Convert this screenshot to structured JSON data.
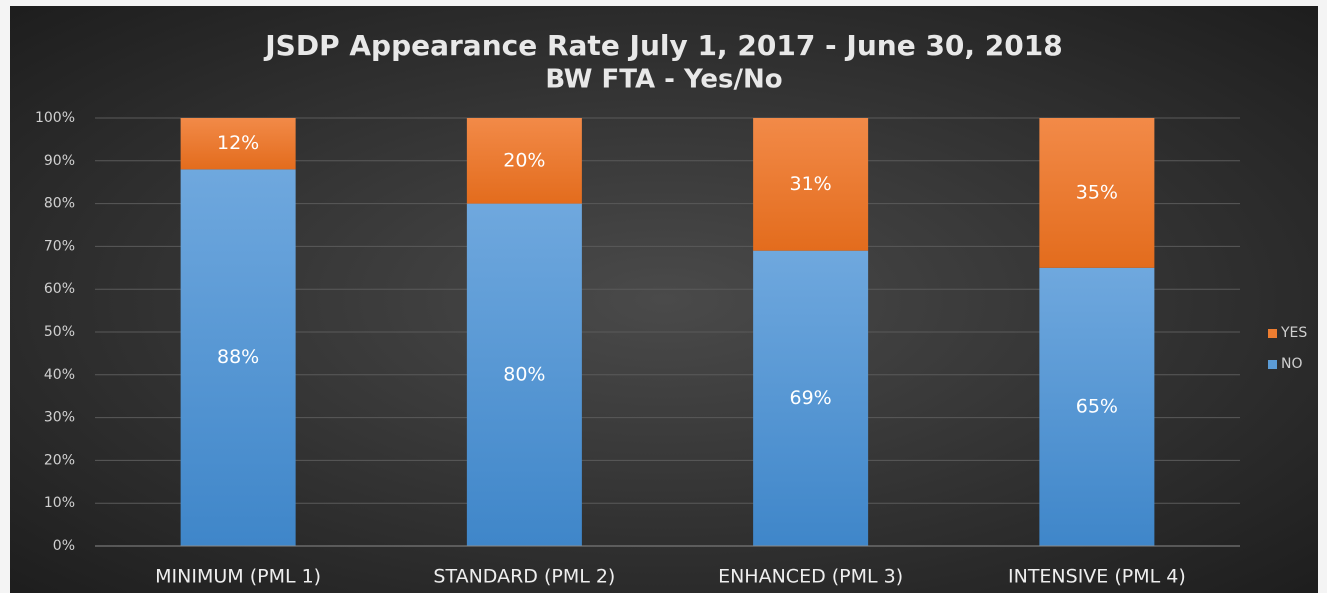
{
  "chart_data": {
    "type": "stacked_bar",
    "title": "JSDP Appearance Rate July 1, 2017 - June 30, 2018",
    "subtitle": "BW FTA - Yes/No",
    "categories": [
      "MINIMUM (PML 1)",
      "STANDARD (PML 2)",
      "ENHANCED (PML 3)",
      "INTENSIVE (PML 4)"
    ],
    "series": [
      {
        "name": "NO",
        "color": "#5b9bd5",
        "values": [
          88,
          80,
          69,
          65
        ],
        "value_labels": [
          "88%",
          "80%",
          "69%",
          "65%"
        ]
      },
      {
        "name": "YES",
        "color": "#ed7d31",
        "values": [
          12,
          20,
          31,
          35
        ],
        "value_labels": [
          "12%",
          "20%",
          "31%",
          "35%"
        ]
      }
    ],
    "ylim": [
      0,
      100
    ],
    "yticks": [
      {
        "value": 0,
        "label": "0%"
      },
      {
        "value": 10,
        "label": "10%"
      },
      {
        "value": 20,
        "label": "20%"
      },
      {
        "value": 30,
        "label": "30%"
      },
      {
        "value": 40,
        "label": "40%"
      },
      {
        "value": 50,
        "label": "50%"
      },
      {
        "value": 60,
        "label": "60%"
      },
      {
        "value": 70,
        "label": "70%"
      },
      {
        "value": 80,
        "label": "80%"
      },
      {
        "value": 90,
        "label": "90%"
      },
      {
        "value": 100,
        "label": "100%"
      }
    ],
    "grid": true,
    "legend": "right"
  }
}
